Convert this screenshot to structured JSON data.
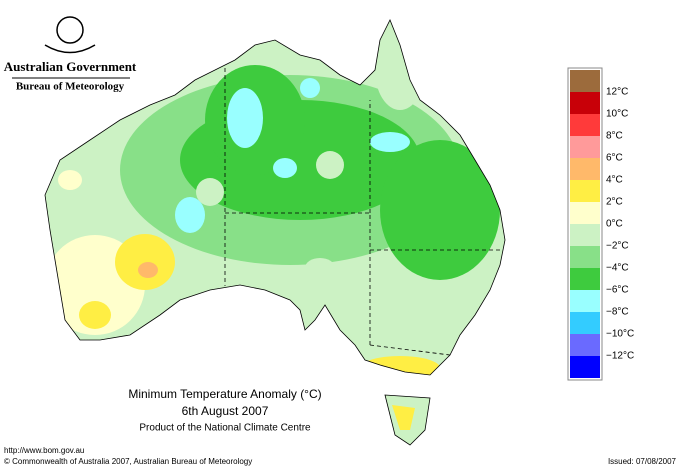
{
  "header": {
    "title": "Australian Government",
    "subtitle": "Bureau of Meteorology"
  },
  "legend": {
    "colors": [
      "#9c6b3c",
      "#c80008",
      "#ff3a3a",
      "#ff9a9a",
      "#ffb96a",
      "#ffee44",
      "#ffffcc",
      "#ccf2c4",
      "#88e088",
      "#3ecb3e",
      "#99ffff",
      "#33ccff",
      "#6a6aff",
      "#0000ff"
    ],
    "labels": [
      "12°C",
      "10°C",
      "8°C",
      "6°C",
      "4°C",
      "2°C",
      "0°C",
      "−2°C",
      "−4°C",
      "−6°C",
      "−8°C",
      "−10°C",
      "−12°C"
    ]
  },
  "map": {
    "title": "Minimum Temperature Anomaly (°C)",
    "date": "6th August 2007",
    "source": "Product of the National Climate Centre"
  },
  "footer": {
    "url": "http://www.bom.gov.au",
    "copyright": "© Commonwealth of Australia 2007, Australian Bureau of Meteorology",
    "issued": "Issued: 07/08/2007"
  }
}
